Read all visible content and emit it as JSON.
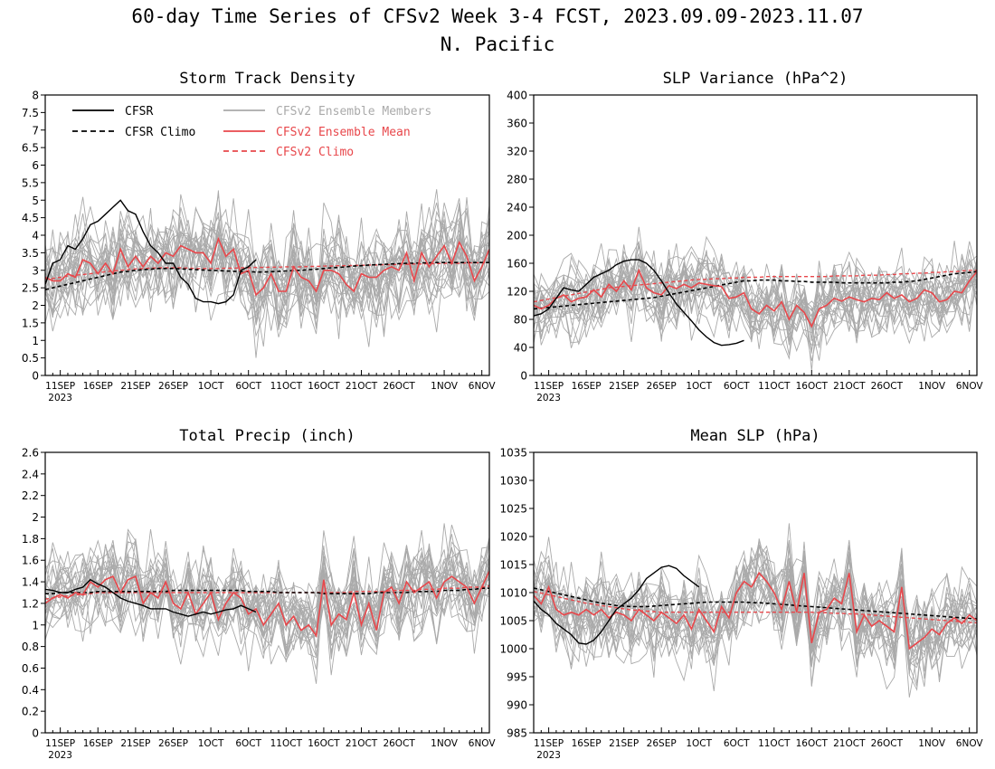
{
  "title": {
    "line1": "60-day Time Series of CFSv2 Week 3-4 FCST, 2023.09.09-2023.11.07",
    "line2": "N. Pacific"
  },
  "legend": {
    "cfsr": "CFSR",
    "cfsr_climo": "CFSR Climo",
    "members": "CFSv2 Ensemble Members",
    "ens_mean": "CFSv2 Ensemble Mean",
    "cfsv2_climo": "CFSv2 Climo"
  },
  "colors": {
    "cfsr": "#000000",
    "members": "#aaaaaa",
    "ens_mean": "#e8474b"
  },
  "x_axis": {
    "start_date": "2023-09-09",
    "days": 60,
    "tick_labels": [
      "11SEP",
      "16SEP",
      "21SEP",
      "26SEP",
      "1OCT",
      "6OCT",
      "11OCT",
      "16OCT",
      "21OCT",
      "26OCT",
      "1NOV",
      "6NOV"
    ],
    "year_label": "2023"
  },
  "chart_data": [
    {
      "type": "line",
      "title": "Storm Track Density",
      "ylim": [
        0,
        8
      ],
      "yticks": [
        "0",
        "0.5",
        "1",
        "1.5",
        "2",
        "2.5",
        "3",
        "3.5",
        "4",
        "4.5",
        "5",
        "5.5",
        "6",
        "6.5",
        "7",
        "7.5",
        "8"
      ],
      "member_mean": "follows Ensemble Mean",
      "member_spread": 0.9,
      "series": {
        "cfsr": [
          2.6,
          3.2,
          3.3,
          3.7,
          3.6,
          3.9,
          4.3,
          4.4,
          4.6,
          4.8,
          5.0,
          4.7,
          4.6,
          4.1,
          3.7,
          3.5,
          3.2,
          3.2,
          2.8,
          2.6,
          2.2,
          2.1,
          2.1,
          2.05,
          2.1,
          2.3,
          3.0,
          3.1,
          3.3
        ],
        "cfsr_climo": [
          2.45,
          2.5,
          2.55,
          2.6,
          2.65,
          2.7,
          2.75,
          2.8,
          2.85,
          2.9,
          2.95,
          2.97,
          3.0,
          3.02,
          3.03,
          3.05,
          3.05,
          3.05,
          3.04,
          3.03,
          3.02,
          3.01,
          3.0,
          2.99,
          2.98,
          2.97,
          2.96,
          2.96,
          2.95,
          2.95,
          2.96,
          2.97,
          2.98,
          2.99,
          3.0,
          3.02,
          3.03,
          3.05,
          3.07,
          3.08,
          3.1,
          3.12,
          3.13,
          3.15,
          3.16,
          3.17,
          3.18,
          3.19,
          3.2,
          3.2,
          3.21,
          3.21,
          3.22,
          3.22,
          3.22,
          3.22,
          3.22,
          3.22,
          3.22,
          3.22
        ],
        "ens_mean": [
          2.8,
          2.7,
          2.7,
          2.9,
          2.8,
          3.3,
          3.2,
          2.9,
          3.2,
          2.9,
          3.6,
          3.1,
          3.4,
          3.1,
          3.4,
          3.2,
          3.5,
          3.4,
          3.7,
          3.6,
          3.5,
          3.5,
          3.2,
          3.9,
          3.4,
          3.6,
          2.9,
          3.0,
          2.3,
          2.5,
          2.9,
          2.4,
          2.4,
          3.1,
          2.8,
          2.7,
          2.4,
          3.0,
          3.0,
          2.9,
          2.6,
          2.4,
          2.9,
          2.8,
          2.8,
          3.0,
          3.1,
          3.0,
          3.5,
          2.7,
          3.5,
          3.1,
          3.4,
          3.7,
          3.2,
          3.8,
          3.4,
          2.7,
          3.1,
          3.6
        ],
        "cfsv2_climo": [
          2.75,
          2.77,
          2.8,
          2.83,
          2.86,
          2.88,
          2.9,
          2.93,
          2.96,
          2.98,
          3.0,
          3.02,
          3.04,
          3.05,
          3.06,
          3.07,
          3.07,
          3.07,
          3.07,
          3.06,
          3.05,
          3.05,
          3.05,
          3.05,
          3.06,
          3.06,
          3.07,
          3.07,
          3.08,
          3.08,
          3.09,
          3.09,
          3.1,
          3.1,
          3.1,
          3.11,
          3.11,
          3.12,
          3.12,
          3.13,
          3.13,
          3.14,
          3.14,
          3.15,
          3.15,
          3.16,
          3.16,
          3.17,
          3.17,
          3.18,
          3.18,
          3.19,
          3.19,
          3.2,
          3.2,
          3.2,
          3.21,
          3.21,
          3.22,
          3.22
        ]
      }
    },
    {
      "type": "line",
      "title": "SLP Variance (hPa^2)",
      "ylim": [
        0,
        400
      ],
      "yticks": [
        "0",
        "40",
        "80",
        "120",
        "160",
        "200",
        "240",
        "280",
        "320",
        "360",
        "400"
      ],
      "member_mean": "follows Ensemble Mean",
      "member_spread": 35,
      "series": {
        "cfsr": [
          85,
          88,
          95,
          110,
          125,
          122,
          120,
          130,
          140,
          145,
          150,
          158,
          163,
          165,
          165,
          160,
          150,
          135,
          118,
          102,
          90,
          78,
          65,
          55,
          47,
          43,
          44,
          46,
          50
        ],
        "cfsr_climo": [
          95,
          96,
          97,
          98,
          99,
          100,
          101,
          102,
          103,
          104,
          105,
          106,
          107,
          108,
          109,
          110,
          111,
          113,
          115,
          117,
          119,
          121,
          123,
          125,
          127,
          129,
          131,
          133,
          135,
          135,
          136,
          136,
          136,
          135,
          135,
          134,
          134,
          133,
          133,
          133,
          133,
          132,
          132,
          132,
          132,
          132,
          132,
          132,
          133,
          133,
          134,
          135,
          137,
          139,
          141,
          143,
          145,
          146,
          147,
          148
        ],
        "ens_mean": [
          100,
          95,
          100,
          110,
          115,
          105,
          110,
          112,
          122,
          112,
          130,
          120,
          135,
          122,
          150,
          125,
          118,
          115,
          128,
          124,
          130,
          125,
          132,
          130,
          128,
          127,
          110,
          112,
          118,
          95,
          88,
          100,
          92,
          105,
          80,
          100,
          90,
          70,
          95,
          100,
          110,
          106,
          112,
          108,
          105,
          110,
          108,
          118,
          110,
          115,
          105,
          110,
          122,
          118,
          105,
          108,
          120,
          118,
          135,
          148
        ],
        "cfsv2_climo": [
          105,
          107,
          109,
          111,
          113,
          115,
          117,
          119,
          121,
          123,
          125,
          126,
          127,
          128,
          129,
          130,
          131,
          132,
          133,
          134,
          135,
          136,
          137,
          137,
          138,
          138,
          139,
          139,
          140,
          140,
          140,
          141,
          141,
          141,
          141,
          141,
          141,
          141,
          141,
          141,
          142,
          142,
          142,
          142,
          143,
          143,
          143,
          144,
          144,
          145,
          145,
          146,
          146,
          147,
          147,
          148,
          148,
          149,
          150,
          150
        ]
      }
    },
    {
      "type": "line",
      "title": "Total Precip (inch)",
      "ylim": [
        0,
        2.6
      ],
      "yticks": [
        "0",
        "0.2",
        "0.4",
        "0.6",
        "0.8",
        "1",
        "1.2",
        "1.4",
        "1.6",
        "1.8",
        "2",
        "2.2",
        "2.4",
        "2.6"
      ],
      "member_mean": "follows Ensemble Mean",
      "member_spread": 0.25,
      "series": {
        "cfsr": [
          1.33,
          1.32,
          1.3,
          1.3,
          1.33,
          1.35,
          1.42,
          1.38,
          1.35,
          1.3,
          1.25,
          1.22,
          1.2,
          1.18,
          1.15,
          1.15,
          1.15,
          1.12,
          1.1,
          1.08,
          1.1,
          1.12,
          1.1,
          1.12,
          1.14,
          1.15,
          1.18,
          1.15,
          1.12
        ],
        "cfsr_climo": [
          1.29,
          1.29,
          1.3,
          1.3,
          1.3,
          1.3,
          1.3,
          1.31,
          1.31,
          1.31,
          1.31,
          1.31,
          1.31,
          1.31,
          1.31,
          1.31,
          1.31,
          1.32,
          1.32,
          1.32,
          1.32,
          1.32,
          1.32,
          1.32,
          1.32,
          1.32,
          1.32,
          1.31,
          1.31,
          1.31,
          1.31,
          1.3,
          1.3,
          1.3,
          1.3,
          1.3,
          1.3,
          1.29,
          1.29,
          1.29,
          1.29,
          1.29,
          1.29,
          1.29,
          1.3,
          1.3,
          1.3,
          1.3,
          1.3,
          1.31,
          1.31,
          1.31,
          1.31,
          1.32,
          1.32,
          1.32,
          1.33,
          1.33,
          1.34,
          1.34
        ],
        "ens_mean": [
          1.2,
          1.25,
          1.28,
          1.25,
          1.3,
          1.28,
          1.4,
          1.35,
          1.42,
          1.45,
          1.3,
          1.42,
          1.45,
          1.2,
          1.3,
          1.25,
          1.4,
          1.2,
          1.15,
          1.3,
          1.1,
          1.2,
          1.3,
          1.05,
          1.2,
          1.3,
          1.25,
          1.1,
          1.15,
          1.0,
          1.1,
          1.2,
          1.0,
          1.08,
          0.95,
          1.0,
          0.9,
          1.42,
          1.0,
          1.1,
          1.05,
          1.3,
          1.0,
          1.2,
          0.95,
          1.3,
          1.35,
          1.2,
          1.4,
          1.3,
          1.35,
          1.4,
          1.25,
          1.4,
          1.45,
          1.4,
          1.35,
          1.2,
          1.35,
          1.5
        ],
        "cfsv2_climo": [
          1.24,
          1.25,
          1.26,
          1.27,
          1.28,
          1.28,
          1.29,
          1.3,
          1.3,
          1.3,
          1.3,
          1.3,
          1.3,
          1.3,
          1.3,
          1.3,
          1.3,
          1.3,
          1.3,
          1.3,
          1.3,
          1.3,
          1.3,
          1.3,
          1.3,
          1.3,
          1.3,
          1.3,
          1.3,
          1.3,
          1.3,
          1.3,
          1.3,
          1.3,
          1.3,
          1.3,
          1.3,
          1.3,
          1.3,
          1.3,
          1.3,
          1.31,
          1.31,
          1.31,
          1.31,
          1.31,
          1.32,
          1.32,
          1.32,
          1.32,
          1.33,
          1.33,
          1.33,
          1.34,
          1.34,
          1.34,
          1.35,
          1.35,
          1.35,
          1.36
        ]
      }
    },
    {
      "type": "line",
      "title": "Mean SLP (hPa)",
      "ylim": [
        985,
        1035
      ],
      "yticks": [
        "985",
        "990",
        "995",
        "1000",
        "1005",
        "1010",
        "1015",
        "1020",
        "1025",
        "1030",
        "1035"
      ],
      "member_mean": "follows Ensemble Mean",
      "member_spread": 5,
      "series": {
        "cfsr": [
          1008.5,
          1007.0,
          1006.0,
          1004.5,
          1003.5,
          1002.5,
          1001.0,
          1000.8,
          1001.5,
          1003.0,
          1005.0,
          1007.0,
          1008.0,
          1009.0,
          1010.5,
          1012.5,
          1013.5,
          1014.5,
          1014.8,
          1014.3,
          1013.0,
          1012.0,
          1011.0
        ],
        "cfsr_climo": [
          1010.8,
          1010.5,
          1010.2,
          1009.9,
          1009.6,
          1009.3,
          1009.0,
          1008.7,
          1008.4,
          1008.1,
          1007.9,
          1007.7,
          1007.6,
          1007.5,
          1007.5,
          1007.5,
          1007.6,
          1007.7,
          1007.8,
          1007.9,
          1008.0,
          1008.1,
          1008.2,
          1008.3,
          1008.3,
          1008.3,
          1008.3,
          1008.3,
          1008.3,
          1008.2,
          1008.2,
          1008.1,
          1008.0,
          1007.9,
          1007.8,
          1007.7,
          1007.6,
          1007.5,
          1007.4,
          1007.3,
          1007.2,
          1007.1,
          1007.0,
          1006.9,
          1006.8,
          1006.7,
          1006.6,
          1006.5,
          1006.4,
          1006.3,
          1006.2,
          1006.1,
          1006.0,
          1005.9,
          1005.8,
          1005.7,
          1005.6,
          1005.5,
          1005.4,
          1005.3
        ],
        "ens_mean": [
          1009.5,
          1008.0,
          1011.0,
          1007.0,
          1006.0,
          1006.5,
          1006.0,
          1007.0,
          1006.0,
          1007.0,
          1005.5,
          1006.5,
          1006.0,
          1005.0,
          1007.0,
          1006.0,
          1005.0,
          1006.5,
          1005.5,
          1004.5,
          1006.0,
          1003.5,
          1007.0,
          1005.0,
          1003.0,
          1007.5,
          1005.5,
          1010.0,
          1012.0,
          1011.0,
          1013.5,
          1012.0,
          1010.0,
          1007.0,
          1012.0,
          1006.5,
          1013.5,
          1001.0,
          1006.5,
          1007.0,
          1009.0,
          1008.0,
          1013.5,
          1003.0,
          1006.0,
          1004.0,
          1005.0,
          1004.0,
          1003.0,
          1011.0,
          1000.0,
          1001.0,
          1002.0,
          1003.5,
          1002.5,
          1004.5,
          1005.5,
          1004.5,
          1006.0,
          1005.0
        ],
        "cfsv2_climo": [
          1010.2,
          1009.9,
          1009.6,
          1009.3,
          1009.0,
          1008.7,
          1008.4,
          1008.1,
          1007.9,
          1007.7,
          1007.5,
          1007.3,
          1007.1,
          1006.9,
          1006.8,
          1006.7,
          1006.6,
          1006.5,
          1006.5,
          1006.5,
          1006.5,
          1006.5,
          1006.5,
          1006.5,
          1006.5,
          1006.5,
          1006.5,
          1006.5,
          1006.5,
          1006.5,
          1006.5,
          1006.5,
          1006.5,
          1006.5,
          1006.5,
          1006.5,
          1006.5,
          1006.5,
          1006.4,
          1006.4,
          1006.3,
          1006.3,
          1006.2,
          1006.2,
          1006.1,
          1006.0,
          1005.9,
          1005.8,
          1005.7,
          1005.6,
          1005.5,
          1005.4,
          1005.3,
          1005.2,
          1005.1,
          1005.0,
          1004.9,
          1004.8,
          1004.7,
          1004.6
        ]
      }
    }
  ]
}
